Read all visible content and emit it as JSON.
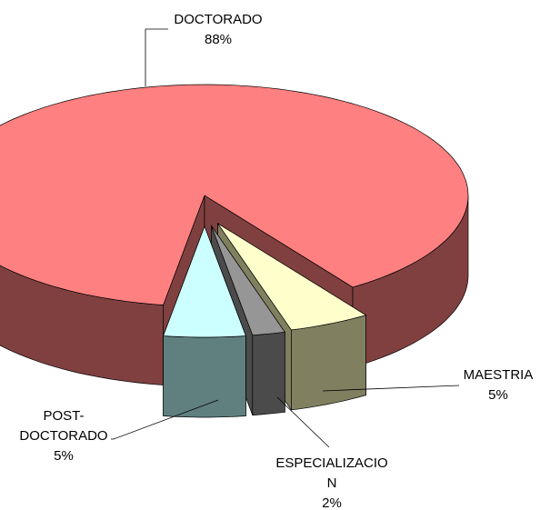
{
  "chart_data": {
    "type": "pie3d",
    "categories": [
      "DOCTORADO",
      "MAESTRIA",
      "ESPECIALIZACION",
      "POST-DOCTORADO"
    ],
    "values": [
      88,
      5,
      2,
      5
    ],
    "value_labels": [
      "88%",
      "5%",
      "2%",
      "5%"
    ],
    "colors": [
      "#FF8080",
      "#FFFFCC",
      "#969696",
      "#CCFFFF"
    ],
    "side_colors": [
      "#804040",
      "#808060",
      "#4B4B4B",
      "#608080"
    ]
  }
}
